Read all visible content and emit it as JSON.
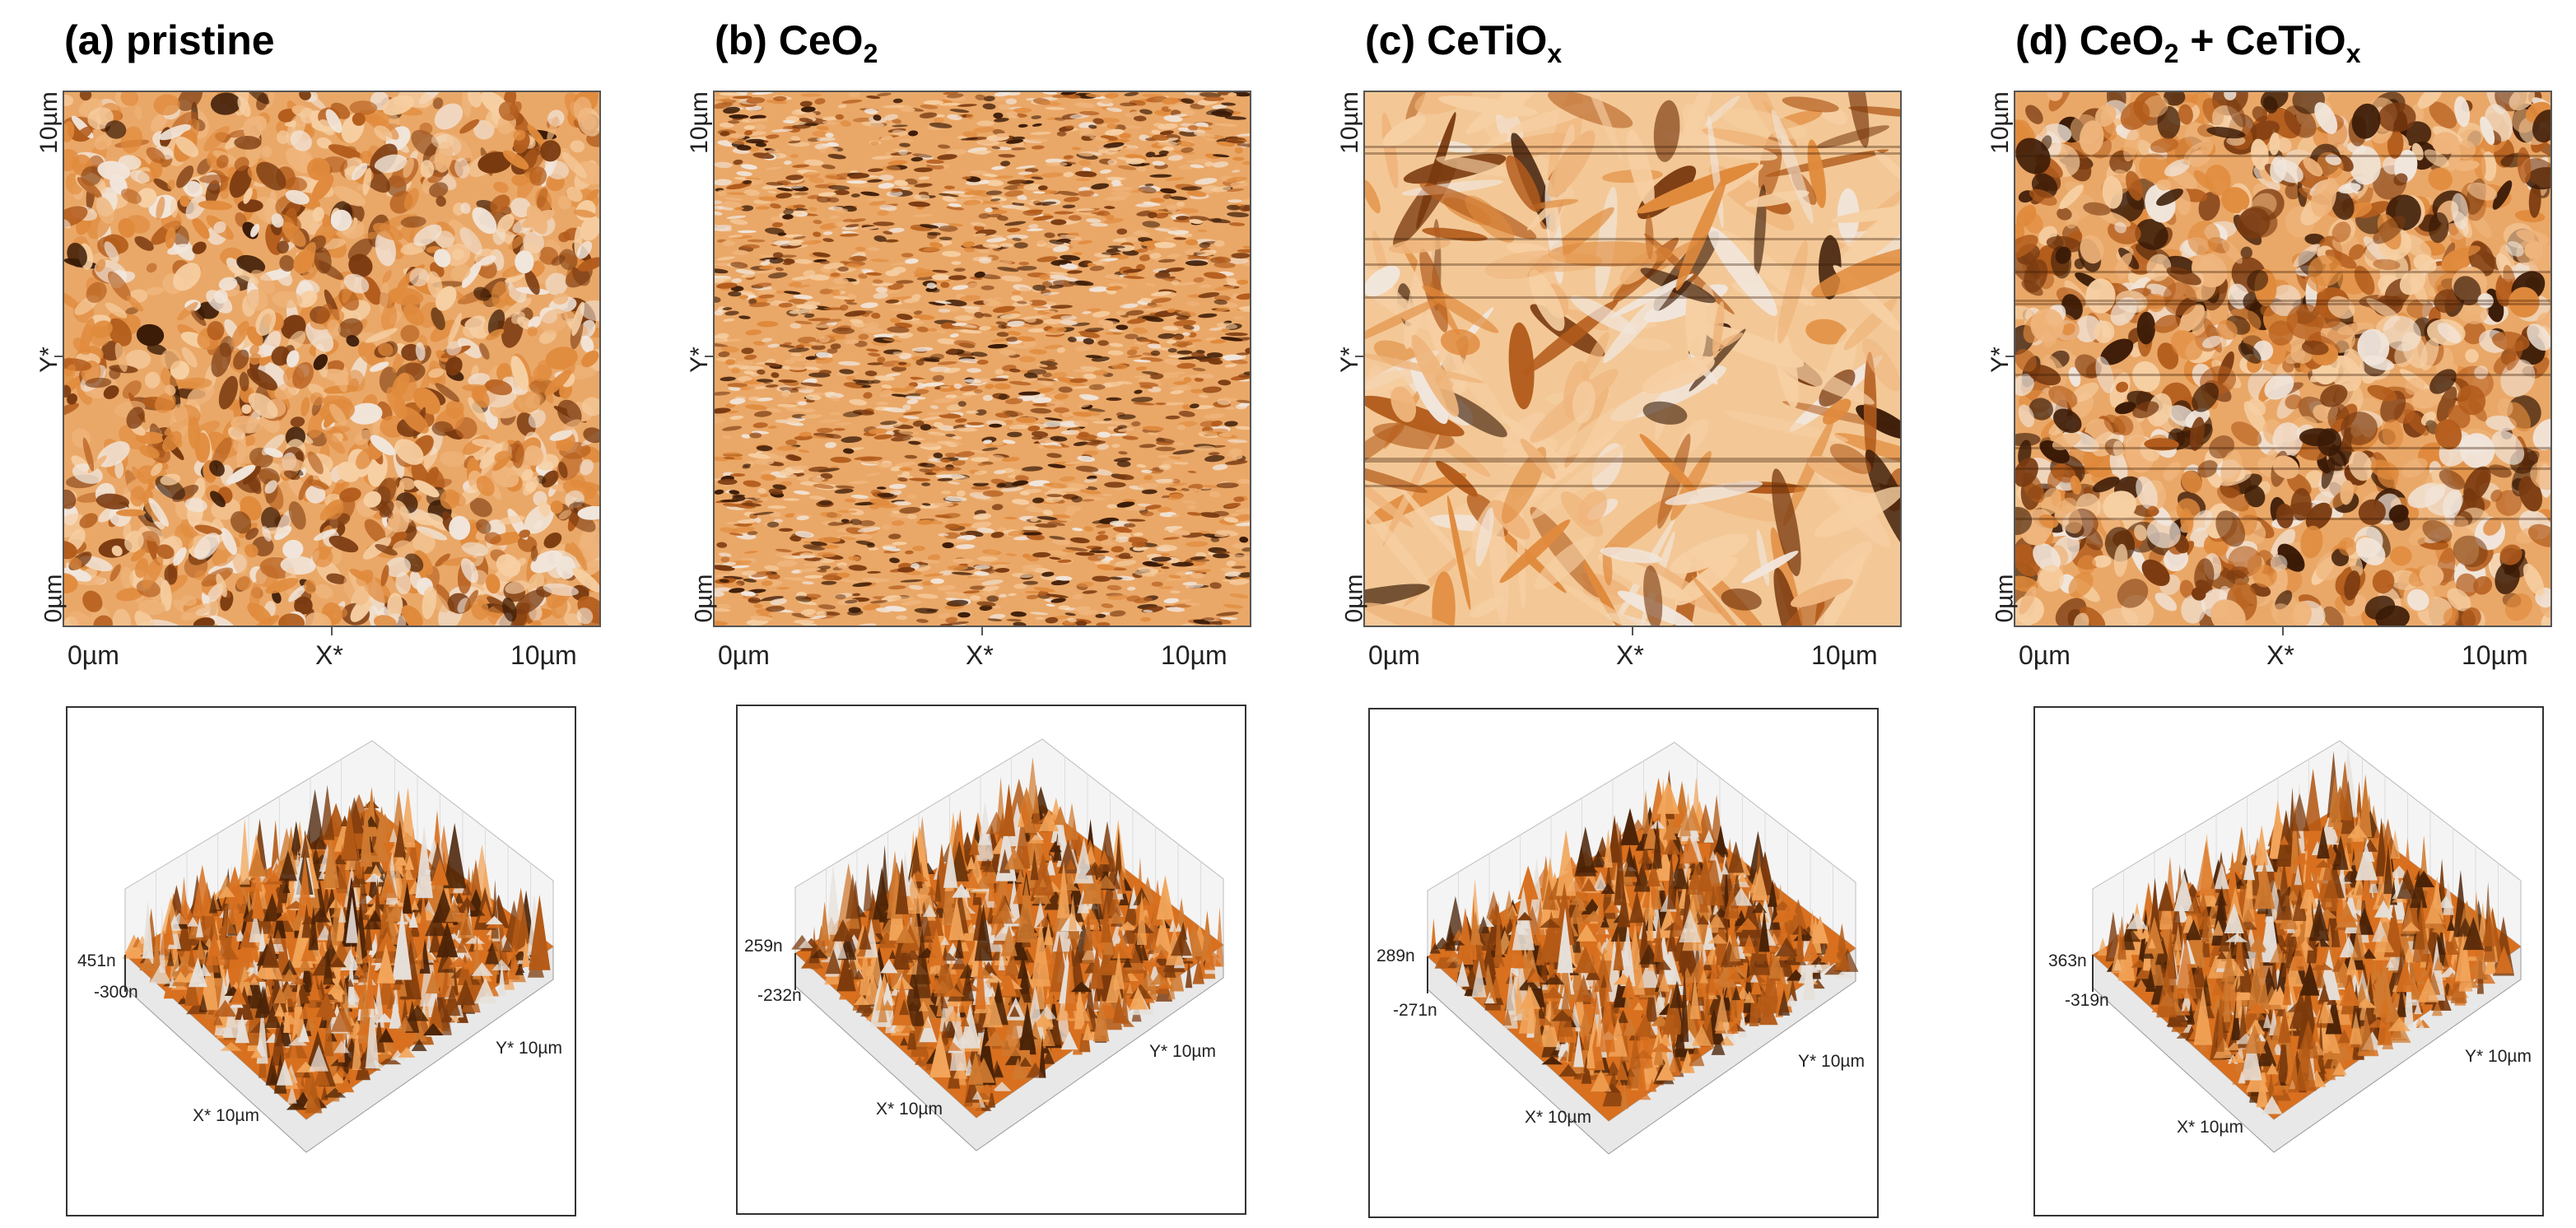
{
  "panels": [
    {
      "letter": "(a)",
      "name": "pristine",
      "sub": "",
      "name2": "",
      "sub2": "",
      "z_max": "451n",
      "z_min": "-300n",
      "texture": "pristine"
    },
    {
      "letter": "(b)",
      "name": "CeO",
      "sub": "2",
      "name2": "",
      "sub2": "",
      "z_max": "259n",
      "z_min": "-232n",
      "texture": "ceo2"
    },
    {
      "letter": "(c)",
      "name": "CeTiO",
      "sub": "x",
      "name2": "",
      "sub2": "",
      "z_max": "289n",
      "z_min": "-271n",
      "texture": "cetiox"
    },
    {
      "letter": "(d)",
      "name": "CeO",
      "sub": "2",
      "name2": " + CeTiO",
      "sub2": "x",
      "z_max": "363n",
      "z_min": "-319n",
      "texture": "mixed"
    }
  ],
  "axes": {
    "y_top": "10µm",
    "y_mid": "Y*",
    "y_bottom": "0µm",
    "x_left": "0µm",
    "x_mid": "X*",
    "x_right": "10µm",
    "x3d": "X* 10µm",
    "y3d": "Y* 10µm"
  },
  "colors": {
    "light": "#f6cfa3",
    "mid": "#e08a3c",
    "dark": "#3a1a06",
    "surface": "#d8701f",
    "highlight": "#f1e6dc"
  }
}
